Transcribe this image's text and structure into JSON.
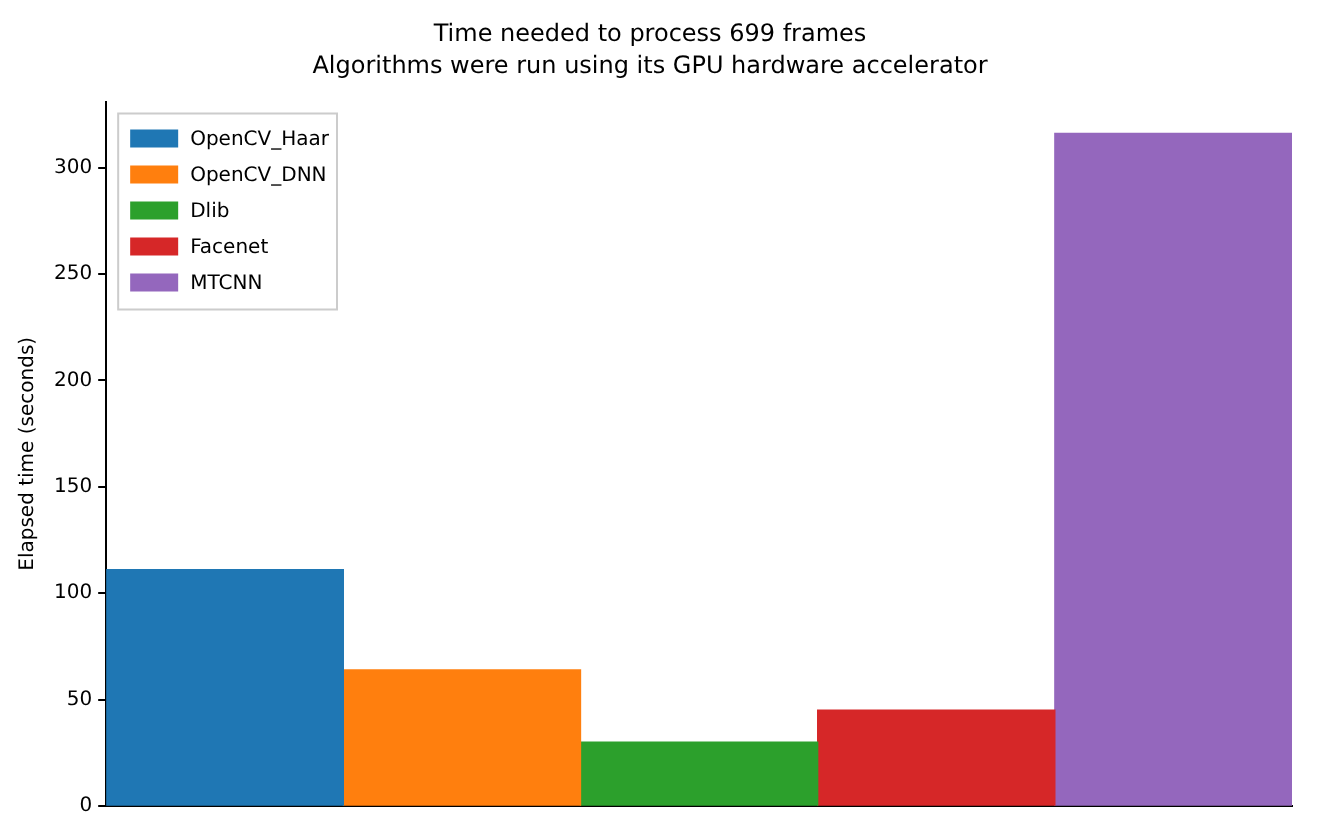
{
  "chart_data": {
    "type": "bar",
    "title": "Time needed to process 699 frames",
    "subtitle": "Algorithms were run using its GPU hardware accelerator",
    "ylabel": "Elapsed time (seconds)",
    "categories": [
      null
    ],
    "series": [
      {
        "name": "OpenCV_Haar",
        "color": "#1f77b4",
        "values": [
          111
        ]
      },
      {
        "name": "OpenCV_DNN",
        "color": "#ff7f0e",
        "values": [
          64
        ]
      },
      {
        "name": "Dlib",
        "color": "#2ca02c",
        "values": [
          30
        ]
      },
      {
        "name": "Facenet",
        "color": "#d62728",
        "values": [
          45
        ]
      },
      {
        "name": "MTCNN",
        "color": "#9467bd",
        "values": [
          316
        ]
      }
    ],
    "ylim": [
      0,
      331
    ],
    "yticks": [
      0,
      50,
      100,
      150,
      200,
      250,
      300
    ],
    "grid": false,
    "legend": "top left",
    "tick_labels": "y"
  }
}
